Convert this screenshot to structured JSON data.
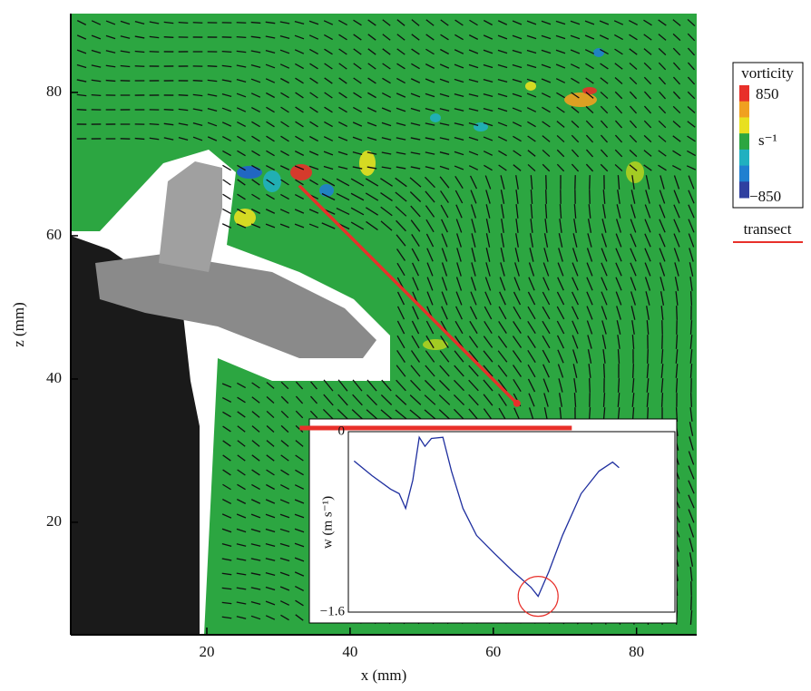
{
  "chart_data": [
    {
      "type": "vector-field",
      "xlabel": "x (mm)",
      "ylabel": "z (mm)",
      "xlim": [
        1,
        88.4
      ],
      "ylim": [
        4.3,
        91
      ],
      "xticks": [
        20,
        40,
        60,
        80
      ],
      "yticks": [
        20,
        40,
        60,
        80
      ],
      "transect": {
        "name": "transect",
        "color": "#e8302a",
        "x": [
          32.9,
          63.3
        ],
        "z": [
          67,
          36.6
        ]
      },
      "colorbar": {
        "title": "vorticity",
        "unit": "s⁻¹",
        "ticks": [
          850,
          {
            "value": -850,
            "label": "−850"
          }
        ],
        "colors": [
          "#e8302a",
          "#f0a020",
          "#e8e020",
          "#2ca641",
          "#20b0c0",
          "#2080d0",
          "#3040a0"
        ]
      }
    },
    {
      "type": "line",
      "ylabel": "w (m s⁻¹)",
      "xlim": [
        39.7,
        85.3
      ],
      "ylim": [
        -1.6,
        0
      ],
      "yticks": [
        0,
        {
          "value": -1.6,
          "label": "−1.6"
        }
      ],
      "series": [
        {
          "color": "#1f2f9f",
          "x": [
            40.5,
            43.0,
            45.6,
            46.8,
            47.7,
            48.7,
            49.6,
            50.4,
            51.3,
            52.9,
            54.1,
            55.7,
            57.6,
            60.1,
            62.7,
            65.2,
            66.2,
            67.7,
            69.6,
            72.2,
            74.7,
            76.6,
            77.5
          ],
          "values": [
            -0.26,
            -0.39,
            -0.51,
            -0.55,
            -0.68,
            -0.43,
            -0.05,
            -0.13,
            -0.06,
            -0.05,
            -0.35,
            -0.68,
            -0.92,
            -1.08,
            -1.24,
            -1.38,
            -1.46,
            -1.24,
            -0.92,
            -0.55,
            -0.35,
            -0.27,
            -0.32
          ]
        }
      ]
    }
  ]
}
